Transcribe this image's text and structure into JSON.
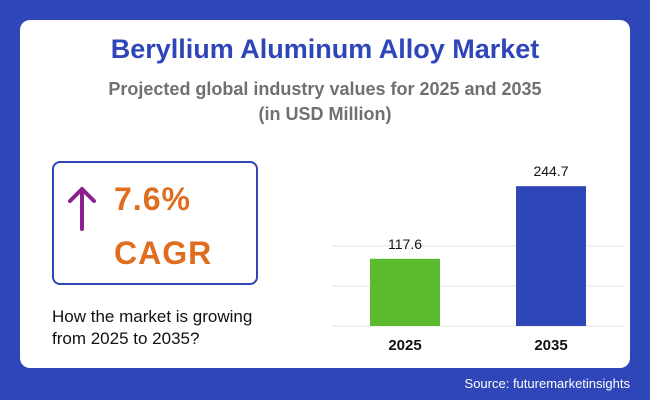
{
  "header": {
    "title": "Beryllium Aluminum Alloy Market",
    "subtitle_line1": "Projected global industry values for 2025 and 2035",
    "subtitle_line2": "(in USD Million)"
  },
  "cagr": {
    "value": "7.6%",
    "label": "CAGR",
    "icon": "arrow-up-icon",
    "accent_color": "#e06c1e",
    "icon_color": "#8a2090"
  },
  "question": {
    "line1": "How the market is growing",
    "line2": "from 2025 to 2035?"
  },
  "source": "Source: futuremarketinsights",
  "colors": {
    "background": "#2f46b8",
    "title": "#2f46b8"
  },
  "chart_data": {
    "type": "bar",
    "title": "",
    "xlabel": "",
    "ylabel": "",
    "categories": [
      "2025",
      "2035"
    ],
    "values": [
      117.6,
      244.7
    ],
    "value_labels": [
      "117.6",
      "244.7"
    ],
    "bar_colors": [
      "#5cba2f",
      "#2f46b8"
    ],
    "ylim": [
      0,
      280
    ],
    "grid": true,
    "legend": "none"
  }
}
